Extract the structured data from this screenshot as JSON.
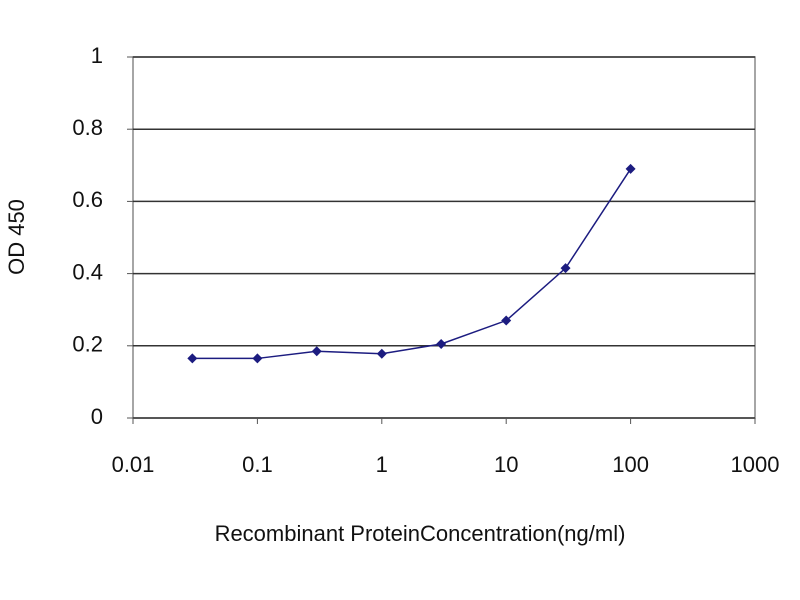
{
  "chart_data": {
    "type": "line",
    "xlabel": "Recombinant ProteinConcentration(ng/ml)",
    "ylabel": "OD 450",
    "x": [
      0.03,
      0.1,
      0.3,
      1,
      3,
      10,
      30,
      100
    ],
    "values": [
      0.165,
      0.165,
      0.185,
      0.178,
      0.205,
      0.27,
      0.415,
      0.69
    ],
    "color": "#1c1c80",
    "xscale": "log",
    "xlim": [
      0.01,
      1000
    ],
    "xticks": [
      0.01,
      0.1,
      1,
      10,
      100,
      1000
    ],
    "ylim": [
      0,
      1
    ],
    "yticks": [
      0,
      0.2,
      0.4,
      0.6,
      0.8,
      1
    ],
    "grid": true
  }
}
